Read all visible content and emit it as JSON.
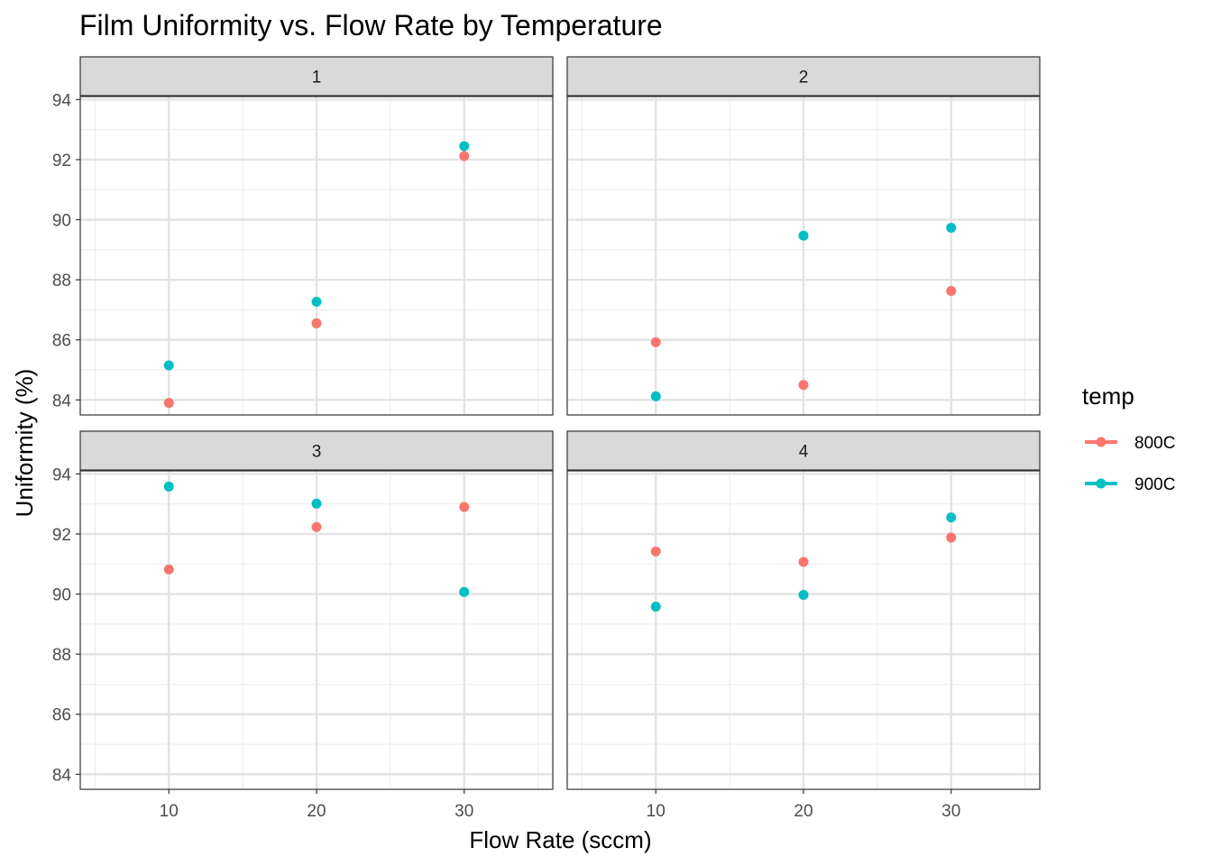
{
  "chart_data": {
    "type": "scatter",
    "title": "Film Uniformity vs. Flow Rate by Temperature",
    "xlabel": "Flow Rate (sccm)",
    "ylabel": "Uniformity (%)",
    "x_ticks": [
      10,
      20,
      30
    ],
    "y_ticks": [
      84,
      86,
      88,
      90,
      92,
      94
    ],
    "xlim": [
      4,
      36
    ],
    "ylim": [
      83.5,
      94.1
    ],
    "grid": true,
    "facet_layout": "2x2",
    "legend": {
      "title": "temp",
      "position": "right",
      "entries": [
        {
          "name": "800C",
          "color": "#F8766D"
        },
        {
          "name": "900C",
          "color": "#00BFC4"
        }
      ]
    },
    "panels": [
      {
        "label": "1",
        "series": [
          {
            "name": "800C",
            "points": [
              {
                "x": 10,
                "y": 83.9
              },
              {
                "x": 20,
                "y": 86.55
              },
              {
                "x": 30,
                "y": 92.12
              }
            ]
          },
          {
            "name": "900C",
            "points": [
              {
                "x": 10,
                "y": 85.15
              },
              {
                "x": 20,
                "y": 87.27
              },
              {
                "x": 30,
                "y": 92.45
              }
            ]
          }
        ]
      },
      {
        "label": "2",
        "series": [
          {
            "name": "800C",
            "points": [
              {
                "x": 10,
                "y": 85.92
              },
              {
                "x": 20,
                "y": 84.5
              },
              {
                "x": 30,
                "y": 87.63
              }
            ]
          },
          {
            "name": "900C",
            "points": [
              {
                "x": 10,
                "y": 84.12
              },
              {
                "x": 20,
                "y": 89.47
              },
              {
                "x": 30,
                "y": 89.73
              }
            ]
          }
        ]
      },
      {
        "label": "3",
        "series": [
          {
            "name": "800C",
            "points": [
              {
                "x": 10,
                "y": 90.82
              },
              {
                "x": 20,
                "y": 92.23
              },
              {
                "x": 30,
                "y": 92.9
              }
            ]
          },
          {
            "name": "900C",
            "points": [
              {
                "x": 10,
                "y": 93.58
              },
              {
                "x": 20,
                "y": 93.01
              },
              {
                "x": 30,
                "y": 90.07
              }
            ]
          }
        ]
      },
      {
        "label": "4",
        "series": [
          {
            "name": "800C",
            "points": [
              {
                "x": 10,
                "y": 91.42
              },
              {
                "x": 20,
                "y": 91.07
              },
              {
                "x": 30,
                "y": 91.88
              }
            ]
          },
          {
            "name": "900C",
            "points": [
              {
                "x": 10,
                "y": 89.58
              },
              {
                "x": 20,
                "y": 89.97
              },
              {
                "x": 30,
                "y": 92.55
              }
            ]
          }
        ]
      }
    ]
  }
}
